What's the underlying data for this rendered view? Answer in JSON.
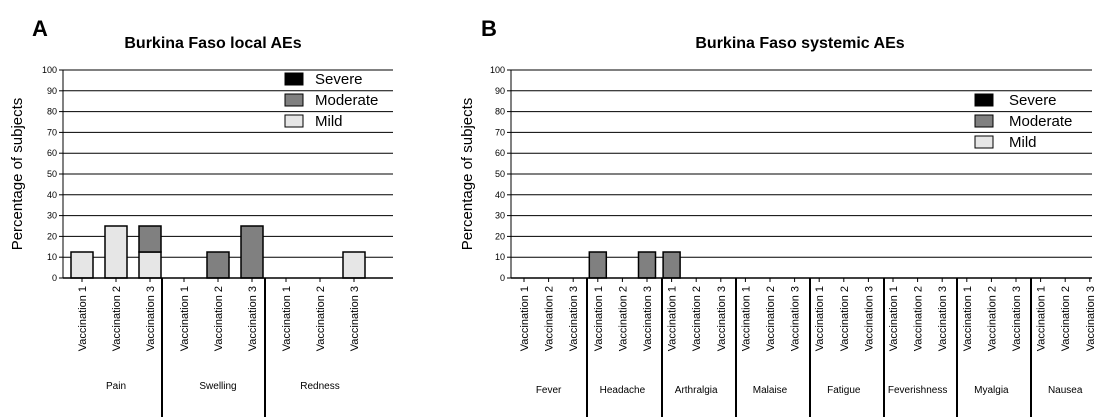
{
  "panels": {
    "A": "A",
    "B": "B"
  },
  "legend_labels": [
    "Severe",
    "Moderate",
    "Mild"
  ],
  "colors": {
    "Severe": "#000000",
    "Moderate": "#808080",
    "Mild": "#e6e6e6"
  },
  "chart_data": [
    {
      "type": "bar",
      "stacked": true,
      "title": "Burkina Faso local AEs",
      "ylabel": "Percentage of subjects",
      "xlabel": "",
      "ylim": [
        0,
        100
      ],
      "yticks": [
        0,
        10,
        20,
        30,
        40,
        50,
        60,
        70,
        80,
        90,
        100
      ],
      "grid": true,
      "legend": "top-right",
      "groups": [
        "Pain",
        "Swelling",
        "Redness"
      ],
      "categories": [
        "Vaccination 1",
        "Vaccination 2",
        "Vaccination 3"
      ],
      "series": [
        {
          "name": "Severe",
          "values": [
            [
              0,
              0,
              0
            ],
            [
              0,
              0,
              0
            ],
            [
              0,
              0,
              0
            ]
          ]
        },
        {
          "name": "Moderate",
          "values": [
            [
              0,
              0,
              12.5
            ],
            [
              0,
              12.5,
              25
            ],
            [
              0,
              0,
              0
            ]
          ]
        },
        {
          "name": "Mild",
          "values": [
            [
              12.5,
              25,
              12.5
            ],
            [
              0,
              0,
              0
            ],
            [
              0,
              0,
              12.5
            ]
          ]
        }
      ]
    },
    {
      "type": "bar",
      "stacked": true,
      "title": "Burkina Faso systemic AEs",
      "ylabel": "Percentage of subjects",
      "xlabel": "",
      "ylim": [
        0,
        100
      ],
      "yticks": [
        0,
        10,
        20,
        30,
        40,
        50,
        60,
        70,
        80,
        90,
        100
      ],
      "grid": true,
      "legend": "top-right",
      "groups": [
        "Fever",
        "Headache",
        "Arthralgia",
        "Malaise",
        "Fatigue",
        "Feverishness",
        "Myalgia",
        "Nausea"
      ],
      "categories": [
        "Vaccination 1",
        "Vaccination 2",
        "Vaccination 3"
      ],
      "series": [
        {
          "name": "Severe",
          "values": [
            [
              0,
              0,
              0
            ],
            [
              0,
              0,
              0
            ],
            [
              0,
              0,
              0
            ],
            [
              0,
              0,
              0
            ],
            [
              0,
              0,
              0
            ],
            [
              0,
              0,
              0
            ],
            [
              0,
              0,
              0
            ],
            [
              0,
              0,
              0
            ]
          ]
        },
        {
          "name": "Moderate",
          "values": [
            [
              0,
              0,
              0
            ],
            [
              12.5,
              0,
              12.5
            ],
            [
              12.5,
              0,
              0
            ],
            [
              0,
              0,
              0
            ],
            [
              0,
              0,
              0
            ],
            [
              0,
              0,
              0
            ],
            [
              0,
              0,
              0
            ],
            [
              0,
              0,
              0
            ]
          ]
        },
        {
          "name": "Mild",
          "values": [
            [
              0,
              0,
              0
            ],
            [
              0,
              0,
              0
            ],
            [
              0,
              0,
              0
            ],
            [
              0,
              0,
              0
            ],
            [
              0,
              0,
              0
            ],
            [
              0,
              0,
              0
            ],
            [
              0,
              0,
              0
            ],
            [
              0,
              0,
              0
            ]
          ]
        }
      ]
    }
  ]
}
